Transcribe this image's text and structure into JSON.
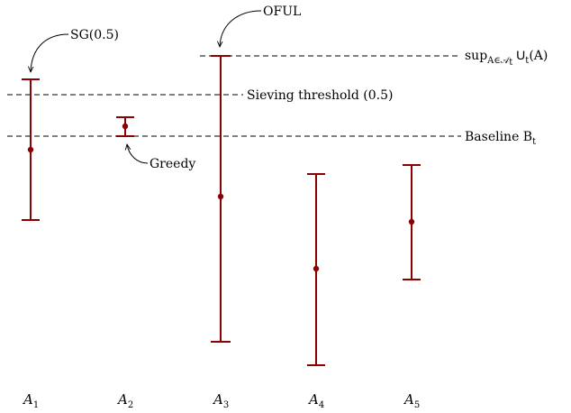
{
  "colors": {
    "interval": "#8b0000",
    "lines": "#000000"
  },
  "thresholds": [
    {
      "id": "sup",
      "label_main": "sup",
      "label_sub": "A∈𝒜",
      "label_subsub": "t",
      "label_tail": " U",
      "label_tail_sub": "t",
      "label_end": "(A)"
    },
    {
      "id": "sieving",
      "label": "Sieving threshold (0.5)"
    },
    {
      "id": "baseline",
      "label_main": "Baseline B",
      "label_sub": "t"
    }
  ],
  "arms": [
    {
      "label": "A",
      "sub": "1"
    },
    {
      "label": "A",
      "sub": "2"
    },
    {
      "label": "A",
      "sub": "3"
    },
    {
      "label": "A",
      "sub": "4"
    },
    {
      "label": "A",
      "sub": "5"
    }
  ],
  "callouts": {
    "sg": "SG(0.5)",
    "oful": "OFUL",
    "greedy": "Greedy"
  }
}
